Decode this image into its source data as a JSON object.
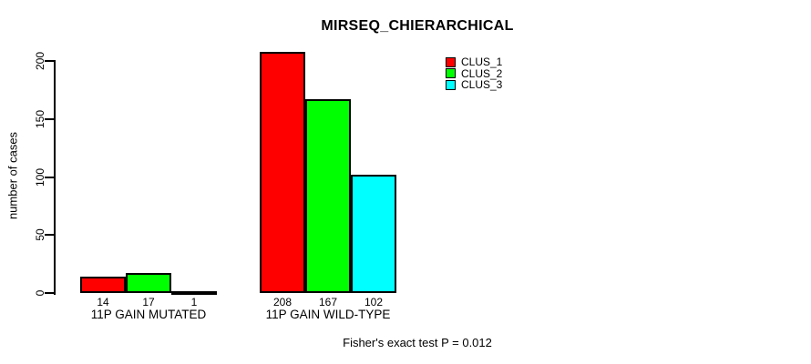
{
  "chart_data": {
    "type": "bar",
    "title": "MIRSEQ_CHIERARCHICAL",
    "xlabel": "",
    "ylabel": "number of cases",
    "ylim": [
      0,
      200
    ],
    "yticks": [
      0,
      50,
      100,
      150,
      200
    ],
    "grid": false,
    "legend_position": "top-right",
    "show_bar_value_labels": true,
    "categories": [
      "11P GAIN MUTATED",
      "11P GAIN WILD-TYPE"
    ],
    "series": [
      {
        "name": "CLUS_1",
        "color": "#ff0000",
        "values": [
          14,
          208
        ]
      },
      {
        "name": "CLUS_2",
        "color": "#00ff00",
        "values": [
          17,
          167
        ]
      },
      {
        "name": "CLUS_3",
        "color": "#00ffff",
        "values": [
          1,
          102
        ]
      }
    ],
    "annotation": "Fisher's exact test P = 0.012"
  },
  "colors": {
    "background": "#ffffff",
    "text": "#000000",
    "axis": "#000000",
    "bar_border": "#000000"
  }
}
